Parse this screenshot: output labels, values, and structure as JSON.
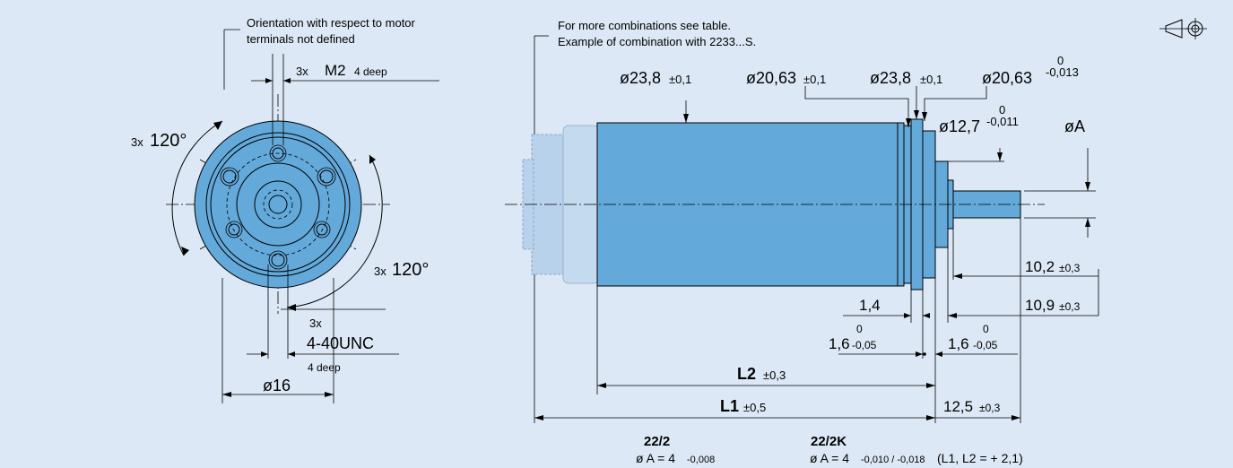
{
  "front_view": {
    "note_line1": "Orientation with respect to motor",
    "note_line2": "terminals not defined",
    "m2_prefix": "3x",
    "m2_main": "M2",
    "m2_depth": "4 deep",
    "angle_top_prefix": "3x",
    "angle_top_value": "120°",
    "angle_bottom_prefix": "3x",
    "angle_bottom_value": "120°",
    "unc_prefix": "3x",
    "unc_main": "4-40UNC",
    "unc_depth": "4 deep",
    "dia16": "ø16"
  },
  "side_view": {
    "note_line1": "For more combinations see table.",
    "note_line2": "Example of combination with 2233...S.",
    "d1_main": "ø23,8",
    "d1_tol": "±0,1",
    "d2_main": "ø20,63",
    "d2_tol": "±0,1",
    "d3_main": "ø23,8",
    "d3_tol": "±0,1",
    "d4_main": "ø20,63",
    "d4_tol_upper": "0",
    "d4_tol_lower": "-0,013",
    "d5_main": "ø12,7",
    "d5_tol_upper": "0",
    "d5_tol_lower": "-0,011",
    "dA": "øA",
    "dim_102_main": "10,2",
    "dim_102_tol": "±0,3",
    "dim_109_main": "10,9",
    "dim_109_tol": "±0,3",
    "dim_14": "1,4",
    "dim_16a_main": "1,6",
    "dim_16a_upper": "0",
    "dim_16a_lower": "-0,05",
    "dim_16b_main": "1,6",
    "dim_16b_upper": "0",
    "dim_16b_lower": "-0,05",
    "l2_main": "L2",
    "l2_tol": "±0,3",
    "l1_main": "L1",
    "l1_tol": "±0,5",
    "dim_125_main": "12,5",
    "dim_125_tol": "±0,3"
  },
  "table": {
    "col1_head": "22/2",
    "col1_prefix": "ø A = 4",
    "col1_tol": "-0,008",
    "col2_head": "22/2K",
    "col2_prefix": "ø A = 4",
    "col2_tol": "-0,010 / -0,018",
    "col2_note": "(L1, L2 = + 2,1)"
  },
  "symbols": {
    "projection_icon": "third-angle-projection-icon"
  },
  "colors": {
    "background": "#dce8f5",
    "part": "#63a9da",
    "ghost_part": "#b8d2ec",
    "line": "#000000"
  }
}
